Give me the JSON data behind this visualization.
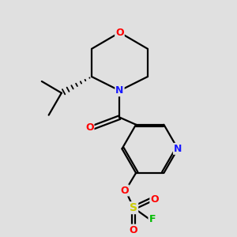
{
  "background_color": "#e0e0e0",
  "atom_colors": {
    "C": "#000000",
    "N": "#1a1aff",
    "O": "#ff0000",
    "S": "#cccc00",
    "F": "#00bb00"
  },
  "bond_color": "#000000",
  "figsize": [
    3.0,
    3.0
  ],
  "dpi": 100
}
